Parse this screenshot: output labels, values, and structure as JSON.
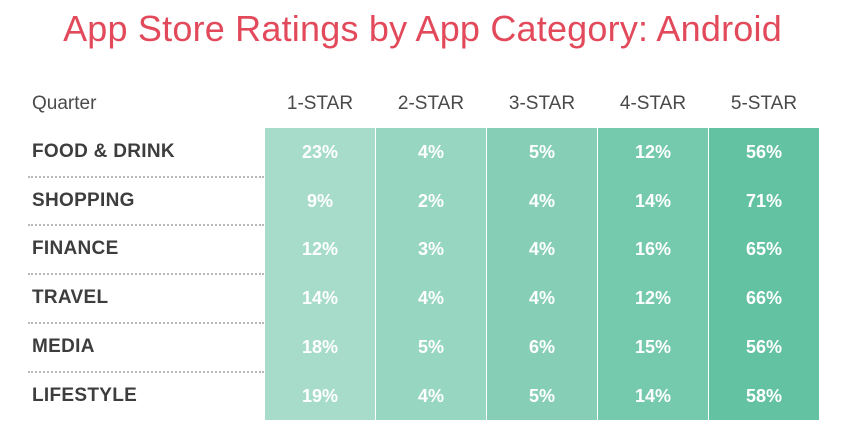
{
  "chart_data": {
    "type": "table",
    "title": "App Store Ratings by App Category: Android",
    "row_header": "Quarter",
    "columns": [
      "1-STAR",
      "2-STAR",
      "3-STAR",
      "4-STAR",
      "5-STAR"
    ],
    "rows": [
      {
        "label": "FOOD & DRINK",
        "values": [
          "23%",
          "4%",
          "5%",
          "12%",
          "56%"
        ]
      },
      {
        "label": "SHOPPING",
        "values": [
          "9%",
          "2%",
          "4%",
          "14%",
          "71%"
        ]
      },
      {
        "label": "FINANCE",
        "values": [
          "12%",
          "3%",
          "4%",
          "16%",
          "65%"
        ]
      },
      {
        "label": "TRAVEL",
        "values": [
          "14%",
          "4%",
          "4%",
          "12%",
          "66%"
        ]
      },
      {
        "label": "MEDIA",
        "values": [
          "18%",
          "5%",
          "6%",
          "15%",
          "56%"
        ]
      },
      {
        "label": "LIFESTYLE",
        "values": [
          "19%",
          "4%",
          "5%",
          "14%",
          "58%"
        ]
      }
    ],
    "column_colors": [
      "#a8dcca",
      "#97d6c0",
      "#86cfb6",
      "#75c9ac",
      "#63c2a1"
    ],
    "title_color": "#e24a5b"
  }
}
